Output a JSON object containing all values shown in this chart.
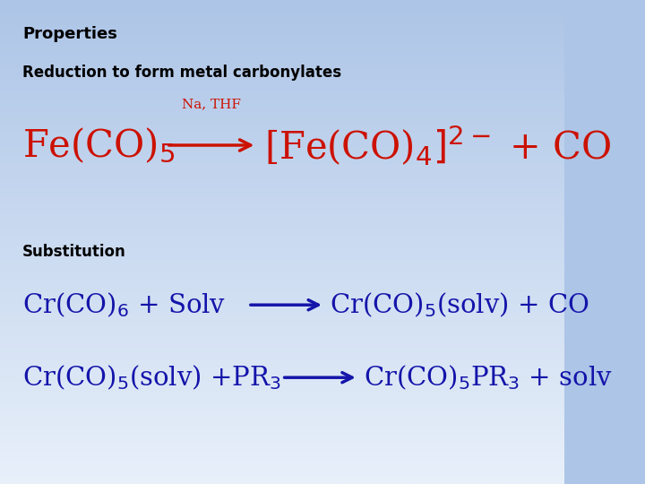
{
  "bg_color_top": "#adc5e7",
  "bg_color_bottom": "#e8f0fa",
  "title": "Properties",
  "subtitle": "Reduction to form metal carbonylates",
  "substitution_label": "Substitution",
  "title_color": "#000000",
  "red_color": "#cc1100",
  "blue_color": "#1414aa",
  "fig_width": 7.2,
  "fig_height": 5.4,
  "dpi": 100
}
